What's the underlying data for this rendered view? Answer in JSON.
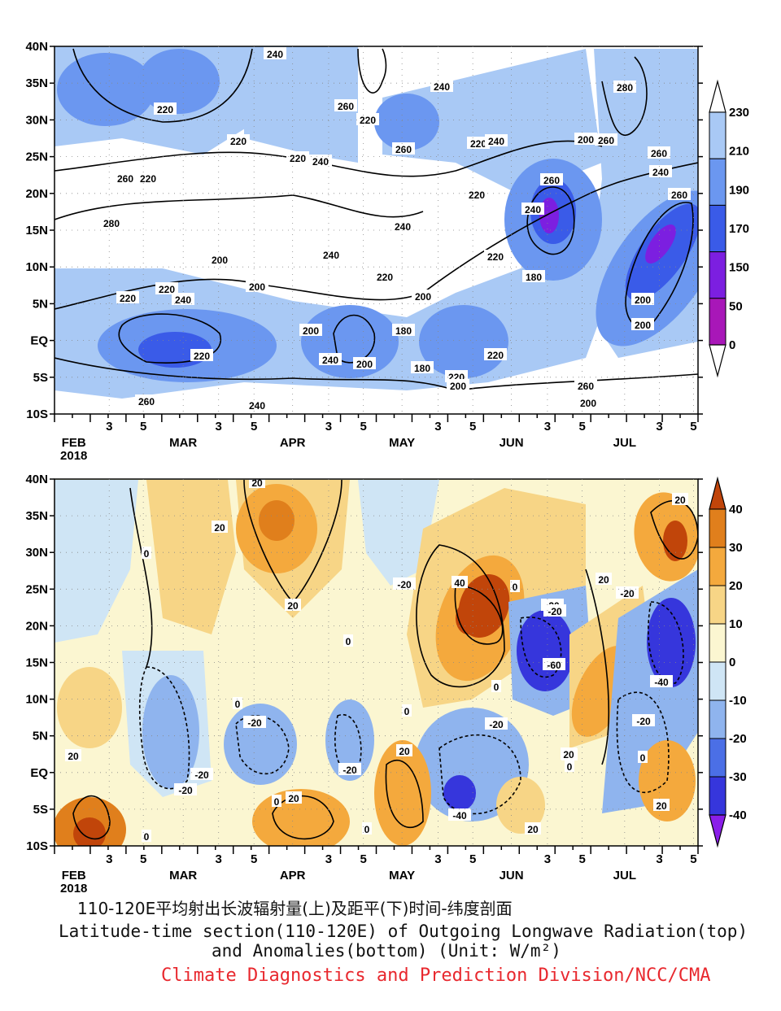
{
  "chart_data": [
    {
      "type": "heatmap",
      "panel": "top",
      "subtype": "latitude-time filled contour",
      "y_ticks": [
        "40N",
        "35N",
        "30N",
        "25N",
        "20N",
        "15N",
        "10N",
        "5N",
        "EQ",
        "5S",
        "10S"
      ],
      "x_ticks": [
        "FEB\n2018",
        "3",
        "5",
        "MAR",
        "3",
        "5",
        "APR",
        "3",
        "5",
        "MAY",
        "3",
        "5",
        "JUN",
        "3",
        "5",
        "JUL",
        "3",
        "5"
      ],
      "ylim": [
        "10S",
        "40N"
      ],
      "colorbar_levels": [
        "230",
        "210",
        "190",
        "170",
        "150",
        "50",
        "0"
      ],
      "colorbar_colors": [
        "#a9c9f5",
        "#6b97f0",
        "#3a5be8",
        "#7c1fe0",
        "#a817b8",
        "#7d1268",
        "#4a0a3f"
      ],
      "contour_labels": [
        "240",
        "220",
        "220",
        "260",
        "220",
        "220",
        "240",
        "260",
        "220",
        "260",
        "240",
        "220",
        "240",
        "220",
        "260",
        "240",
        "180",
        "220",
        "200",
        "260",
        "280",
        "260",
        "240",
        "260",
        "280",
        "200",
        "200",
        "240",
        "220",
        "240",
        "200",
        "180",
        "220",
        "200",
        "240",
        "200",
        "180",
        "220",
        "200",
        "220",
        "200",
        "200",
        "260",
        "200",
        "220",
        "220",
        "240",
        "260",
        "240"
      ],
      "grid": true
    },
    {
      "type": "heatmap",
      "panel": "bottom",
      "subtype": "latitude-time anomaly filled contour",
      "y_ticks": [
        "40N",
        "35N",
        "30N",
        "25N",
        "20N",
        "15N",
        "10N",
        "5N",
        "EQ",
        "5S",
        "10S"
      ],
      "x_ticks": [
        "FEB\n2018",
        "3",
        "5",
        "MAR",
        "3",
        "5",
        "APR",
        "3",
        "5",
        "MAY",
        "3",
        "5",
        "JUN",
        "3",
        "5",
        "JUL",
        "3",
        "5"
      ],
      "ylim": [
        "10S",
        "40N"
      ],
      "colorbar_levels": [
        "40",
        "30",
        "20",
        "10",
        "0",
        "-10",
        "-20",
        "-30",
        "-40"
      ],
      "colorbar_colors": [
        "#c1450a",
        "#e07f1c",
        "#f4a93d",
        "#f7d586",
        "#fbf6d1",
        "#cfe5f5",
        "#8fb4ee",
        "#4b6fe6",
        "#3636dc",
        "#8a1ee8"
      ],
      "contour_labels": [
        "20",
        "20",
        "0",
        "20",
        "20",
        "0",
        "40",
        "0",
        "-20",
        "-20",
        "20",
        "-60",
        "0",
        "-20",
        "0",
        "-20",
        "-20",
        "0",
        "-20",
        "-20",
        "-40",
        "20",
        "0",
        "20",
        "20",
        "-40",
        "0",
        "20",
        "-20",
        "0",
        "20",
        "0",
        "-20",
        "-20",
        "20",
        "0",
        "-20",
        "20"
      ],
      "grid": true
    }
  ],
  "captions": {
    "zh": "110-120E平均射出长波辐射量(上)及距平(下)时间-纬度剖面",
    "en_line1": "Latitude-time section(110-120E) of Outgoing Longwave Radiation(top)",
    "en_line2": "and Anomalies(bottom) (Unit: W/m²)",
    "credit": "Climate Diagnostics and Prediction Division/NCC/CMA"
  }
}
